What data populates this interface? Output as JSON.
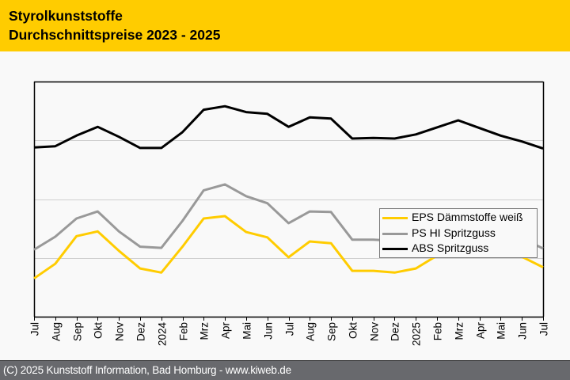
{
  "header": {
    "title_line1": "Styrolkunststoffe",
    "title_line2": "Durchschnittspreise 2023 - 2025",
    "background_color": "#ffcc00"
  },
  "footer": {
    "text": "(C) 2025 Kunststoff Information, Bad Homburg - www.kiweb.de"
  },
  "chart_data": {
    "type": "line",
    "title": "Styrolkunststoffe Durchschnittspreise 2023 - 2025",
    "xlabel": "",
    "ylabel": "",
    "y_axis_note": "no y-axis tick labels shown; values are relative index levels in gridline units (0 = x-axis, 4 = top of plot)",
    "ylim": [
      0,
      4
    ],
    "gridlines_y": [
      1,
      2,
      3
    ],
    "grid": true,
    "legend_position": "right-middle",
    "categories": [
      "Jul",
      "Aug",
      "Sep",
      "Okt",
      "Nov",
      "Dez",
      "2024",
      "Feb",
      "Mrz",
      "Apr",
      "Mai",
      "Jun",
      "Jul",
      "Aug",
      "Sep",
      "Okt",
      "Nov",
      "Dez",
      "2025",
      "Feb",
      "Mrz",
      "Apr",
      "Mai",
      "Jun",
      "Jul"
    ],
    "series": [
      {
        "name": "EPS Dämmstoffe weiß",
        "color": "#ffcc00",
        "values": [
          0.65,
          0.9,
          1.37,
          1.45,
          1.12,
          0.82,
          0.75,
          1.19,
          1.67,
          1.71,
          1.44,
          1.35,
          1.01,
          1.28,
          1.25,
          0.78,
          0.78,
          0.75,
          0.82,
          1.04,
          1.31,
          1.23,
          1.13,
          1.02,
          0.84
        ]
      },
      {
        "name": "PS HI Spritzguss",
        "color": "#999999",
        "values": [
          1.14,
          1.36,
          1.67,
          1.79,
          1.45,
          1.19,
          1.17,
          1.63,
          2.15,
          2.25,
          2.05,
          1.93,
          1.59,
          1.79,
          1.78,
          1.31,
          1.31,
          1.29,
          1.37,
          1.5,
          1.68,
          1.53,
          1.44,
          1.33,
          1.16
        ]
      },
      {
        "name": "ABS Spritzguss",
        "color": "#000000",
        "values": [
          2.88,
          2.9,
          3.08,
          3.23,
          3.06,
          2.87,
          2.87,
          3.14,
          3.52,
          3.58,
          3.48,
          3.45,
          3.23,
          3.39,
          3.37,
          3.03,
          3.04,
          3.03,
          3.1,
          3.22,
          3.34,
          3.21,
          3.08,
          2.98,
          2.86
        ]
      }
    ]
  }
}
